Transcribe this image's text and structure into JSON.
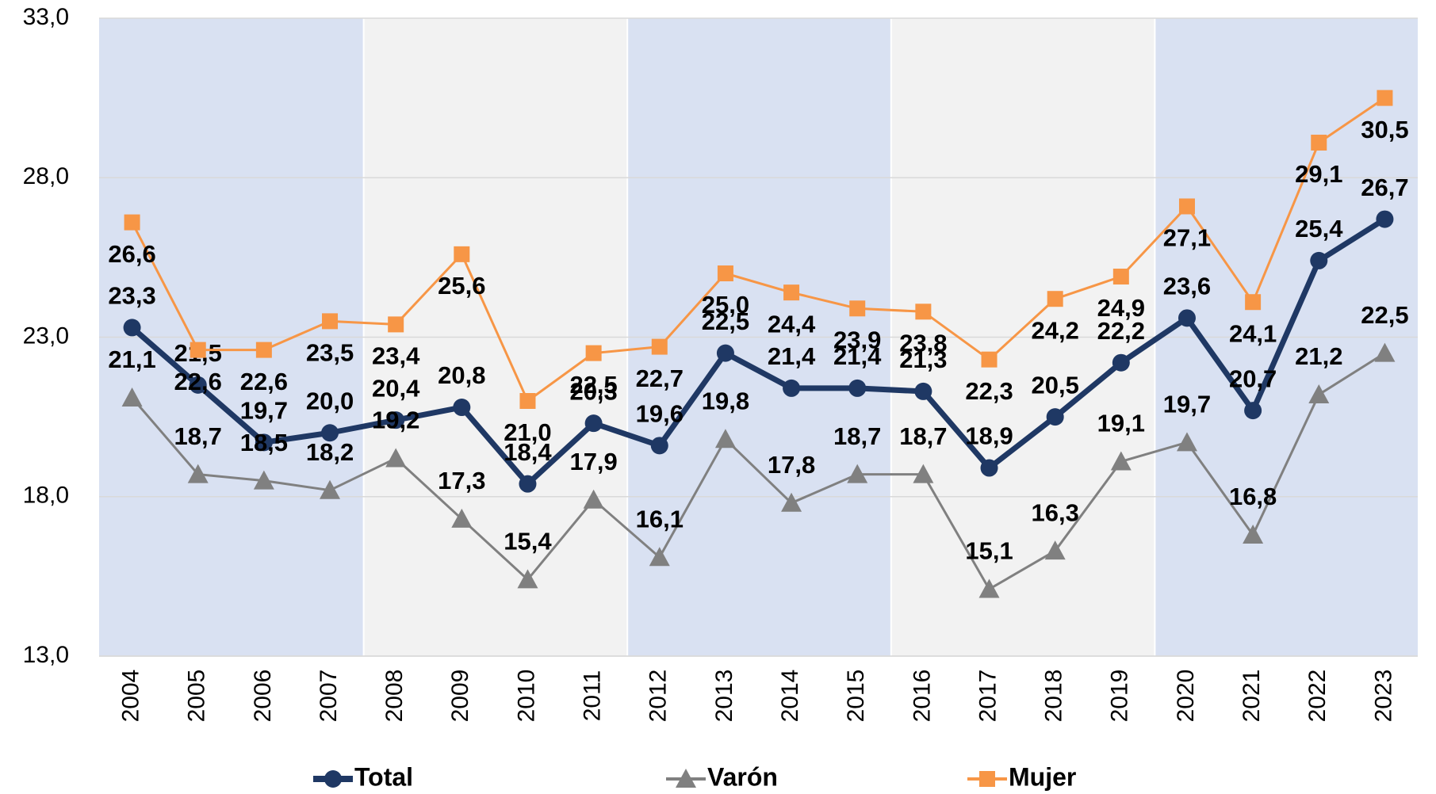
{
  "chart_data": {
    "type": "line",
    "categories": [
      "2004",
      "2005",
      "2006",
      "2007",
      "2008",
      "2009",
      "2010",
      "2011",
      "2012",
      "2013",
      "2014",
      "2015",
      "2016",
      "2017",
      "2018",
      "2019",
      "2020",
      "2021",
      "2022",
      "2023"
    ],
    "ylim": [
      13,
      33
    ],
    "yticks": [
      {
        "value": 13,
        "label": "13,0"
      },
      {
        "value": 18,
        "label": "18,0"
      },
      {
        "value": 23,
        "label": "23,0"
      },
      {
        "value": 28,
        "label": "28,0"
      },
      {
        "value": 33,
        "label": "33,0"
      }
    ],
    "grid": true,
    "legend": "bottom",
    "series": [
      {
        "name": "Total",
        "color": "#1f3864",
        "marker": "circle",
        "values": [
          23.3,
          21.5,
          19.7,
          20.0,
          20.4,
          20.8,
          18.4,
          20.3,
          19.6,
          22.5,
          21.4,
          21.4,
          21.3,
          18.9,
          20.5,
          22.2,
          23.6,
          20.7,
          25.4,
          26.7
        ],
        "value_labels": [
          "23,3",
          "21,5",
          "19,7",
          "20,0",
          "20,4",
          "20,8",
          "18,4",
          "20,3",
          "19,6",
          "22,5",
          "21,4",
          "21,4",
          "21,3",
          "18,9",
          "20,5",
          "22,2",
          "23,6",
          "20,7",
          "25,4",
          "26,7"
        ]
      },
      {
        "name": "Varón",
        "color": "#808080",
        "marker": "triangle",
        "values": [
          21.1,
          18.7,
          18.5,
          18.2,
          19.2,
          17.3,
          15.4,
          17.9,
          16.1,
          19.8,
          17.8,
          18.7,
          18.7,
          15.1,
          16.3,
          19.1,
          19.7,
          16.8,
          21.2,
          22.5
        ],
        "value_labels": [
          "21,1",
          "18,7",
          "18,5",
          "18,2",
          "19,2",
          "17,3",
          "15,4",
          "17,9",
          "16,1",
          "19,8",
          "17,8",
          "18,7",
          "18,7",
          "15,1",
          "16,3",
          "19,1",
          "19,7",
          "16,8",
          "21,2",
          "22,5"
        ]
      },
      {
        "name": "Mujer",
        "color": "#f79646",
        "marker": "square",
        "values": [
          26.6,
          22.6,
          22.6,
          23.5,
          23.4,
          25.6,
          21.0,
          22.5,
          22.7,
          25.0,
          24.4,
          23.9,
          23.8,
          22.3,
          24.2,
          24.9,
          27.1,
          24.1,
          29.1,
          30.5
        ],
        "value_labels": [
          "26,6",
          "22,6",
          "22,6",
          "23,5",
          "23,4",
          "25,6",
          "21,0",
          "22,5",
          "22,7",
          "25,0",
          "24,4",
          "23,9",
          "23,8",
          "22,3",
          "24,2",
          "24,9",
          "27,1",
          "24,1",
          "29,1",
          "30,5"
        ]
      }
    ]
  }
}
